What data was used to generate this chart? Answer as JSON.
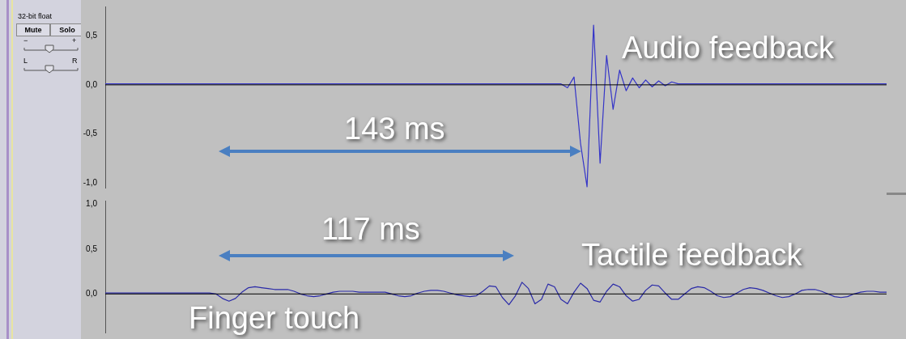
{
  "chart_data": [
    {
      "type": "other",
      "annotations": [
        "32-bit float",
        "Mute",
        "Solo",
        "−",
        "+",
        "L",
        "R"
      ]
    },
    {
      "type": "line",
      "categories": [
        null,
        null,
        null,
        null,
        null,
        null,
        null,
        null,
        null,
        null,
        null,
        null,
        null,
        null,
        null,
        null,
        null,
        null,
        null,
        null,
        null,
        null,
        null,
        null,
        null,
        null,
        null,
        null,
        null,
        null,
        null,
        null,
        null,
        null,
        null,
        null,
        null,
        null,
        null,
        null,
        null,
        null,
        null,
        null,
        null,
        null,
        null,
        null,
        null,
        null,
        null,
        null,
        null,
        null,
        null,
        null,
        null,
        null,
        null,
        null,
        null,
        null,
        null,
        null,
        null,
        null,
        null,
        null,
        null,
        null,
        null,
        null,
        null,
        null,
        null,
        null,
        null,
        null,
        null,
        null,
        null,
        null,
        null,
        null,
        null,
        null,
        null,
        null,
        null,
        null,
        null,
        null,
        null,
        null,
        null,
        null,
        null,
        null,
        null,
        null,
        null,
        null,
        null,
        null,
        null,
        null,
        null,
        null,
        null,
        null,
        null,
        null,
        null,
        null,
        null,
        null,
        null,
        null,
        null,
        null,
        null
      ],
      "series": [
        {
          "color": "#3434c8",
          "values": [
            0.01,
            0.01,
            0.01,
            0.01,
            0.01,
            0.01,
            0.01,
            0.01,
            0.01,
            0.01,
            0.01,
            0.01,
            0.01,
            0.01,
            0.01,
            0.01,
            0.01,
            0.01,
            0.01,
            0.01,
            0.01,
            0.01,
            0.01,
            0.01,
            0.01,
            0.01,
            0.01,
            0.01,
            0.01,
            0.01,
            0.01,
            0.01,
            0.01,
            0.01,
            0.01,
            0.01,
            0.01,
            0.01,
            0.01,
            0.01,
            0.01,
            0.01,
            0.01,
            0.01,
            0.01,
            0.01,
            0.01,
            0.01,
            0.01,
            0.01,
            0.01,
            0.01,
            0.01,
            0.01,
            0.01,
            0.01,
            0.01,
            0.01,
            0.01,
            0.01,
            0.01,
            0.01,
            0.01,
            0.01,
            0.01,
            0.01,
            0.01,
            0.01,
            0.01,
            0.01,
            0.01,
            -0.03,
            0.08,
            -0.6,
            -1.04,
            0.61,
            -0.8,
            0.3,
            -0.25,
            0.15,
            -0.06,
            0.07,
            -0.03,
            0.05,
            -0.02,
            0.04,
            -0.01,
            0.03,
            0.01,
            0.01,
            0.01,
            0.01,
            0.01,
            0.01,
            0.01,
            0.01,
            0.01,
            0.01,
            0.01,
            0.01,
            0.01,
            0.01,
            0.01,
            0.01,
            0.01,
            0.01,
            0.01,
            0.01,
            0.01,
            0.01,
            0.01,
            0.01,
            0.01,
            0.01,
            0.01,
            0.01,
            0.01,
            0.01,
            0.01,
            0.01,
            0.01
          ]
        }
      ],
      "ylim": [
        -1.05,
        0.8
      ],
      "yticks": [
        {
          "value": -1,
          "label": "-1,0"
        },
        {
          "value": -0.5,
          "label": "-0,5"
        },
        {
          "value": 0,
          "label": "0,0"
        },
        {
          "value": 0.5,
          "label": "0,5"
        }
      ],
      "tick_labels": "y",
      "ref_lines": [
        {
          "axis": "y",
          "value": 0,
          "color": "#000000"
        }
      ],
      "annotations": [
        "Audio feedback",
        "143 ms"
      ]
    },
    {
      "type": "line",
      "categories": [
        null,
        null,
        null,
        null,
        null,
        null,
        null,
        null,
        null,
        null,
        null,
        null,
        null,
        null,
        null,
        null,
        null,
        null,
        null,
        null,
        null,
        null,
        null,
        null,
        null,
        null,
        null,
        null,
        null,
        null,
        null,
        null,
        null,
        null,
        null,
        null,
        null,
        null,
        null,
        null,
        null,
        null,
        null,
        null,
        null,
        null,
        null,
        null,
        null,
        null,
        null,
        null,
        null,
        null,
        null,
        null,
        null,
        null,
        null,
        null,
        null,
        null,
        null,
        null,
        null,
        null,
        null,
        null,
        null,
        null,
        null,
        null,
        null,
        null,
        null,
        null,
        null,
        null,
        null,
        null,
        null,
        null,
        null,
        null,
        null,
        null,
        null,
        null,
        null,
        null,
        null,
        null,
        null,
        null,
        null,
        null,
        null,
        null,
        null,
        null,
        null,
        null,
        null,
        null,
        null,
        null,
        null,
        null,
        null,
        null,
        null,
        null,
        null,
        null,
        null,
        null,
        null,
        null,
        null,
        null,
        null
      ],
      "series": [
        {
          "color": "#2a2aa8",
          "values": [
            0.01,
            0.01,
            0.01,
            0.01,
            0.01,
            0.01,
            0.01,
            0.01,
            0.01,
            0.01,
            0.01,
            0.01,
            0.01,
            0.01,
            0.01,
            0.01,
            0.01,
            0.0,
            -0.05,
            -0.08,
            -0.05,
            0.02,
            0.07,
            0.08,
            0.07,
            0.06,
            0.05,
            0.05,
            0.05,
            0.03,
            0.0,
            -0.02,
            -0.03,
            -0.02,
            0.0,
            0.02,
            0.03,
            0.03,
            0.03,
            0.02,
            0.02,
            0.02,
            0.02,
            0.02,
            0.0,
            -0.02,
            -0.03,
            -0.02,
            0.01,
            0.03,
            0.04,
            0.04,
            0.03,
            0.01,
            -0.01,
            -0.02,
            -0.03,
            -0.02,
            0.03,
            0.09,
            0.08,
            -0.04,
            -0.12,
            -0.02,
            0.13,
            0.06,
            -0.11,
            -0.06,
            0.11,
            0.08,
            -0.06,
            -0.11,
            0.02,
            0.12,
            0.06,
            -0.07,
            -0.09,
            0.03,
            0.11,
            0.08,
            -0.02,
            -0.08,
            -0.06,
            0.04,
            0.1,
            0.09,
            0.01,
            -0.06,
            -0.06,
            0.0,
            0.06,
            0.08,
            0.07,
            0.03,
            -0.02,
            -0.04,
            -0.03,
            0.01,
            0.05,
            0.07,
            0.06,
            0.04,
            0.01,
            -0.02,
            -0.04,
            -0.03,
            0.0,
            0.04,
            0.05,
            0.05,
            0.03,
            0.0,
            -0.03,
            -0.04,
            -0.03,
            0.0,
            0.02,
            0.03,
            0.03,
            0.02,
            0.02
          ]
        }
      ],
      "ylim": [
        -0.43,
        1.04
      ],
      "yticks": [
        {
          "value": 0,
          "label": "0,0"
        },
        {
          "value": 0.5,
          "label": "0,5"
        },
        {
          "value": 1,
          "label": "1,0"
        }
      ],
      "tick_labels": "y",
      "ref_lines": [
        {
          "axis": "y",
          "value": 0,
          "color": "#000000"
        }
      ],
      "annotations": [
        "117 ms",
        "Tactile feedback",
        "Finger touch"
      ]
    }
  ]
}
